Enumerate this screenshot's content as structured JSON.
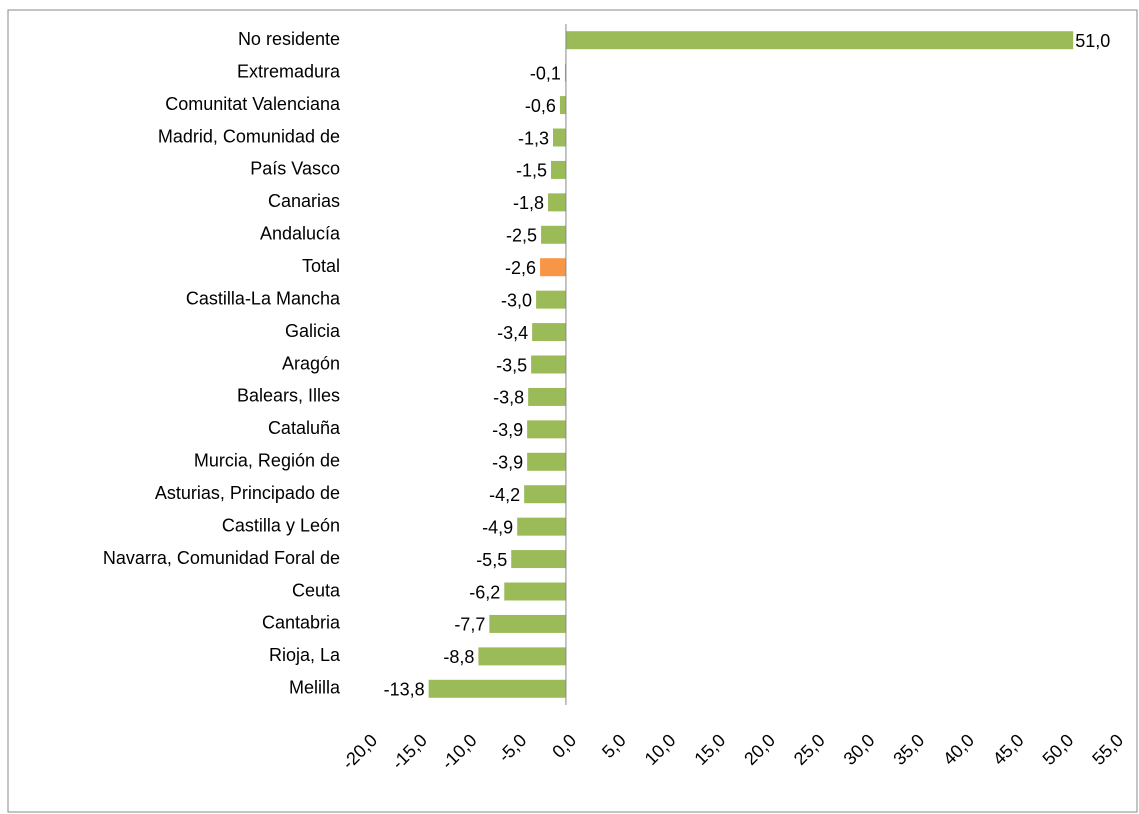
{
  "chart_data": {
    "type": "barh",
    "categories": [
      "No residente",
      "Extremadura",
      "Comunitat Valenciana",
      "Madrid, Comunidad de",
      "País Vasco",
      "Canarias",
      "Andalucía",
      "Total",
      "Castilla-La Mancha",
      "Galicia",
      "Aragón",
      "Balears, Illes",
      "Cataluña",
      "Murcia, Región de",
      "Asturias, Principado de",
      "Castilla y León",
      "Navarra, Comunidad Foral de",
      "Ceuta",
      "Cantabria",
      "Rioja, La",
      "Melilla"
    ],
    "values": [
      51.0,
      -0.1,
      -0.6,
      -1.3,
      -1.5,
      -1.8,
      -2.5,
      -2.6,
      -3.0,
      -3.4,
      -3.5,
      -3.8,
      -3.9,
      -3.9,
      -4.2,
      -4.9,
      -5.5,
      -6.2,
      -7.7,
      -8.8,
      -13.8
    ],
    "value_labels": [
      "51,0",
      "-0,1",
      "-0,6",
      "-1,3",
      "-1,5",
      "-1,8",
      "-2,5",
      "-2,6",
      "-3,0",
      "-3,4",
      "-3,5",
      "-3,8",
      "-3,9",
      "-3,9",
      "-4,2",
      "-4,9",
      "-5,5",
      "-6,2",
      "-7,7",
      "-8,8",
      "-13,8"
    ],
    "colors": [
      "#9bbb59",
      "#9bbb59",
      "#9bbb59",
      "#9bbb59",
      "#9bbb59",
      "#9bbb59",
      "#9bbb59",
      "#f79646",
      "#9bbb59",
      "#9bbb59",
      "#9bbb59",
      "#9bbb59",
      "#9bbb59",
      "#9bbb59",
      "#9bbb59",
      "#9bbb59",
      "#9bbb59",
      "#9bbb59",
      "#9bbb59",
      "#9bbb59",
      "#9bbb59"
    ],
    "xlim": [
      -20,
      55
    ],
    "xticks": [
      {
        "value": -20,
        "label": "-20,0"
      },
      {
        "value": -15,
        "label": "-15,0"
      },
      {
        "value": -10,
        "label": "-10,0"
      },
      {
        "value": -5,
        "label": "-5,0"
      },
      {
        "value": 0,
        "label": "0,0"
      },
      {
        "value": 5,
        "label": "5,0"
      },
      {
        "value": 10,
        "label": "10,0"
      },
      {
        "value": 15,
        "label": "15,0"
      },
      {
        "value": 20,
        "label": "20,0"
      },
      {
        "value": 25,
        "label": "25,0"
      },
      {
        "value": 30,
        "label": "30,0"
      },
      {
        "value": 35,
        "label": "35,0"
      },
      {
        "value": 40,
        "label": "40,0"
      },
      {
        "value": 45,
        "label": "45,0"
      },
      {
        "value": 50,
        "label": "50,0"
      },
      {
        "value": 55,
        "label": "55,0"
      }
    ],
    "grid": false
  }
}
